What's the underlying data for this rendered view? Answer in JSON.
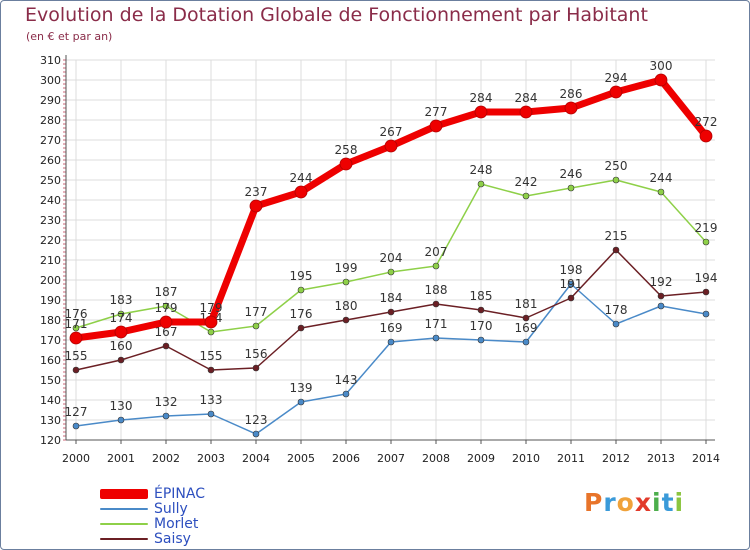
{
  "header": {
    "title": "Evolution de la Dotation Globale de Fonctionnement par Habitant",
    "subtitle": "(en € et par an)"
  },
  "logo": {
    "letters": [
      "P",
      "r",
      "o",
      "x",
      "i",
      "t",
      "i"
    ],
    "colors": [
      "#e8742a",
      "#3a9ad9",
      "#f0a23a",
      "#e23a2a",
      "#4cae4c",
      "#3a9ad9",
      "#8bc53f"
    ]
  },
  "colors": {
    "grid": "#dcdcdc",
    "axis": "#555555",
    "tick_text": "#222222",
    "label_text": "#333333",
    "title": "#8a2c49",
    "legend_text": "#2d4fbf"
  },
  "chart_data": {
    "type": "line",
    "title": "Evolution de la Dotation Globale de Fonctionnement par Habitant",
    "subtitle": "(en € et par an)",
    "xlabel": "",
    "ylabel": "",
    "categories": [
      "2000",
      "2001",
      "2002",
      "2003",
      "2004",
      "2005",
      "2006",
      "2007",
      "2008",
      "2009",
      "2010",
      "2011",
      "2012",
      "2013",
      "2014"
    ],
    "ylim": [
      120,
      310
    ],
    "yticks": [
      120,
      130,
      140,
      150,
      160,
      170,
      180,
      190,
      200,
      210,
      220,
      230,
      240,
      250,
      260,
      270,
      280,
      290,
      300,
      310
    ],
    "grid": true,
    "legend_position": "bottom-left",
    "series": [
      {
        "name": "Sully",
        "color": "#4a8ac8",
        "values": [
          127,
          130,
          132,
          133,
          123,
          139,
          143,
          169,
          171,
          170,
          169,
          198,
          178,
          187,
          183
        ],
        "labels": [
          "127",
          "130",
          "132",
          "133",
          "123",
          "139",
          "143",
          "169",
          "171",
          "170",
          "169",
          "198",
          "178",
          "",
          ""
        ]
      },
      {
        "name": "Morlet",
        "color": "#8ed048",
        "values": [
          176,
          183,
          187,
          174,
          177,
          195,
          199,
          204,
          207,
          248,
          242,
          246,
          250,
          244,
          219
        ],
        "labels": [
          "176",
          "183",
          "187",
          "174",
          "177",
          "195",
          "199",
          "204",
          "207",
          "248",
          "242",
          "246",
          "250",
          "244",
          "219"
        ]
      },
      {
        "name": "Saisy",
        "color": "#6b1f24",
        "values": [
          155,
          160,
          167,
          155,
          156,
          176,
          180,
          184,
          188,
          185,
          181,
          191,
          215,
          192,
          194
        ],
        "labels": [
          "155",
          "160",
          "167",
          "155",
          "156",
          "176",
          "180",
          "184",
          "188",
          "185",
          "181",
          "191",
          "215",
          "192",
          "194"
        ]
      },
      {
        "name": "ÉPINAC",
        "color": "#ee0000",
        "values": [
          171,
          174,
          179,
          179,
          237,
          244,
          258,
          267,
          277,
          284,
          284,
          286,
          294,
          300,
          272
        ],
        "labels": [
          "171",
          "174",
          "179",
          "179",
          "237",
          "244",
          "258",
          "267",
          "277",
          "284",
          "284",
          "286",
          "294",
          "300",
          "272"
        ]
      }
    ],
    "legend": [
      "ÉPINAC",
      "Sully",
      "Morlet",
      "Saisy"
    ]
  }
}
